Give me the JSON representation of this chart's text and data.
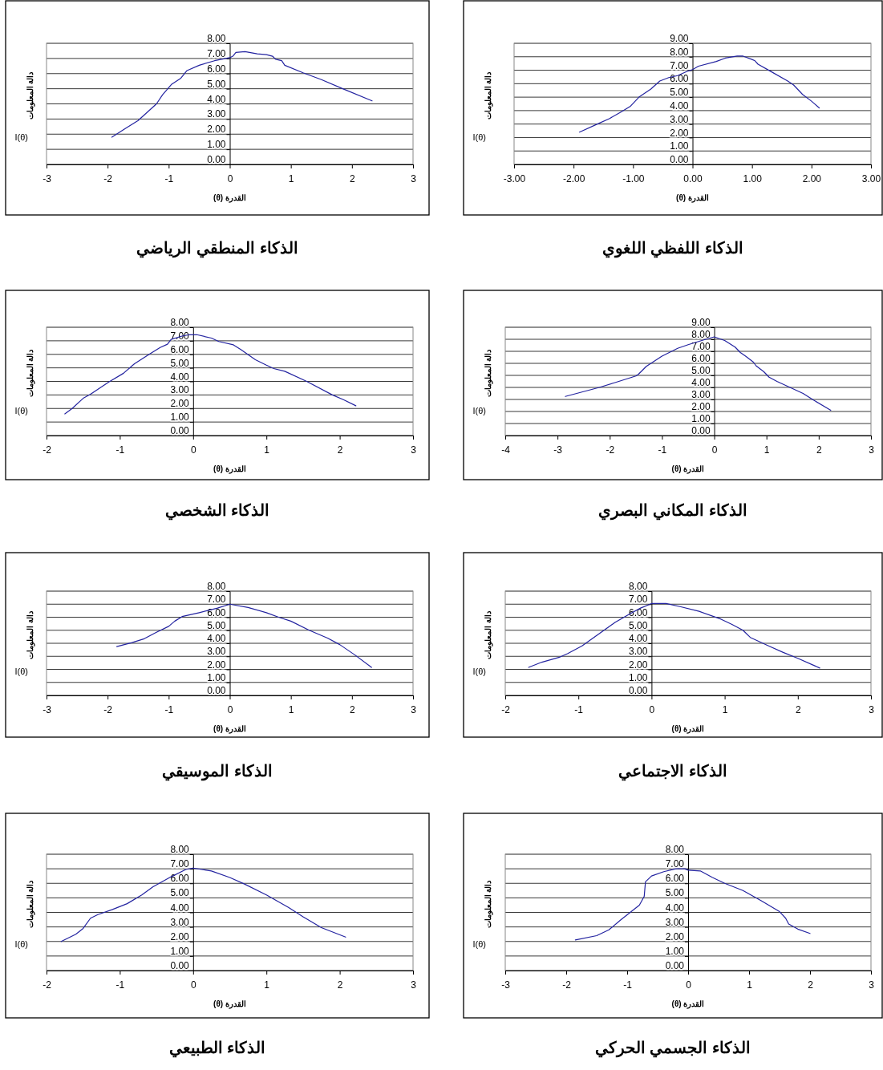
{
  "chart_data": [
    {
      "type": "line",
      "title": "الذكاء اللفظي اللغوي",
      "xlabel": "القدرة (θ)",
      "ylabel": "دالة المعلومات",
      "annotations": [
        "I(θ)"
      ],
      "grid": "y",
      "line_style": "solid",
      "xlim": [
        -3,
        3
      ],
      "xticks": [
        {
          "value": -3,
          "label": "-3.00"
        },
        {
          "value": -2,
          "label": "-2.00"
        },
        {
          "value": -1,
          "label": "-1.00"
        },
        {
          "value": 0,
          "label": "0.00"
        },
        {
          "value": 1,
          "label": "1.00"
        },
        {
          "value": 2,
          "label": "2.00"
        },
        {
          "value": 3,
          "label": "3.00"
        }
      ],
      "ylim": [
        0,
        9
      ],
      "yticks": [
        {
          "value": 0,
          "label": "0.00"
        },
        {
          "value": 1,
          "label": "1.00"
        },
        {
          "value": 2,
          "label": "2.00"
        },
        {
          "value": 3,
          "label": "3.00"
        },
        {
          "value": 4,
          "label": "4.00"
        },
        {
          "value": 5,
          "label": "5.00"
        },
        {
          "value": 6,
          "label": "6.00"
        },
        {
          "value": 7,
          "label": "7.00"
        },
        {
          "value": 8,
          "label": "8.00"
        },
        {
          "value": 9,
          "label": "9.00"
        }
      ],
      "series": [
        {
          "color": "#2323a0",
          "x": [
            -1.9,
            -1.6,
            -1.4,
            -1.2,
            -1.05,
            -0.9,
            -0.7,
            -0.55,
            -0.4,
            -0.25,
            -0.1,
            0,
            0.1,
            0.4,
            0.55,
            0.75,
            0.85,
            1.0,
            1.05,
            1.1,
            1.3,
            1.6,
            1.7,
            1.85,
            2.0,
            2.13
          ],
          "values": [
            2.4,
            3.0,
            3.4,
            3.9,
            4.3,
            5.0,
            5.6,
            6.2,
            6.45,
            6.6,
            6.9,
            7.05,
            7.3,
            7.65,
            7.9,
            8.05,
            8.05,
            7.8,
            7.7,
            7.45,
            6.95,
            6.2,
            5.9,
            5.2,
            4.7,
            4.2
          ]
        }
      ]
    },
    {
      "type": "line",
      "title": "الذكاء المنطقي الرياضي",
      "xlabel": "القدرة (θ)",
      "ylabel": "دالة المعلومات",
      "annotations": [
        "I(θ)"
      ],
      "grid": "y",
      "line_style": "solid",
      "xlim": [
        -3,
        3
      ],
      "xticks": [
        -3,
        -2,
        -1,
        0,
        1,
        2,
        3
      ],
      "ylim": [
        0,
        8
      ],
      "yticks": [
        {
          "value": 0,
          "label": "0.00"
        },
        {
          "value": 1,
          "label": "1.00"
        },
        {
          "value": 2,
          "label": "2.00"
        },
        {
          "value": 3,
          "label": "3.00"
        },
        {
          "value": 4,
          "label": "4.00"
        },
        {
          "value": 5,
          "label": "5.00"
        },
        {
          "value": 6,
          "label": "6.00"
        },
        {
          "value": 7,
          "label": "7.00"
        },
        {
          "value": 8,
          "label": "8.00"
        }
      ],
      "series": [
        {
          "color": "#2323a0",
          "x": [
            -1.93,
            -1.7,
            -1.5,
            -1.2,
            -1.1,
            -0.95,
            -0.8,
            -0.7,
            -0.5,
            -0.25,
            0,
            0.05,
            0.1,
            0.25,
            0.45,
            0.6,
            0.7,
            0.75,
            0.85,
            0.9,
            1.2,
            1.5,
            1.85,
            2.33
          ],
          "values": [
            1.8,
            2.4,
            2.9,
            4.0,
            4.6,
            5.3,
            5.7,
            6.2,
            6.55,
            6.85,
            7.05,
            7.15,
            7.4,
            7.45,
            7.3,
            7.25,
            7.15,
            6.95,
            6.85,
            6.55,
            6.05,
            5.6,
            5.0,
            4.2
          ]
        }
      ]
    },
    {
      "type": "line",
      "title": "الذكاء المكاني البصري",
      "xlabel": "القدرة (θ)",
      "ylabel": "دالة المعلومات",
      "annotations": [
        "I(θ)"
      ],
      "grid": "y",
      "line_style": "solid",
      "xlim": [
        -4,
        3
      ],
      "xticks": [
        -4,
        -3,
        -2,
        -1,
        0,
        1,
        2,
        3
      ],
      "ylim": [
        0,
        9
      ],
      "yticks": [
        {
          "value": 0,
          "label": "0.00"
        },
        {
          "value": 1,
          "label": "1.00"
        },
        {
          "value": 2,
          "label": "2.00"
        },
        {
          "value": 3,
          "label": "3.00"
        },
        {
          "value": 4,
          "label": "4.00"
        },
        {
          "value": 5,
          "label": "5.00"
        },
        {
          "value": 6,
          "label": "6.00"
        },
        {
          "value": 7,
          "label": "7.00"
        },
        {
          "value": 8,
          "label": "8.00"
        },
        {
          "value": 9,
          "label": "9.00"
        }
      ],
      "series": [
        {
          "color": "#2323a0",
          "x": [
            -2.85,
            -2.2,
            -1.9,
            -1.5,
            -1.45,
            -1.38,
            -1.3,
            -1.0,
            -0.7,
            -0.5,
            -0.2,
            0,
            0.2,
            0.4,
            0.5,
            0.6,
            0.75,
            0.8,
            0.95,
            1.05,
            1.2,
            1.45,
            1.7,
            1.9,
            2.23
          ],
          "values": [
            3.25,
            4.0,
            4.4,
            4.95,
            5.1,
            5.4,
            5.75,
            6.6,
            7.25,
            7.55,
            7.95,
            8.2,
            7.9,
            7.35,
            6.9,
            6.6,
            6.1,
            5.8,
            5.3,
            4.85,
            4.5,
            4.0,
            3.5,
            2.95,
            2.1
          ]
        }
      ]
    },
    {
      "type": "line",
      "title": "الذكاء الشخصي",
      "xlabel": "القدرة (θ)",
      "ylabel": "دالة المعلومات",
      "annotations": [
        "I(θ)"
      ],
      "grid": "y",
      "line_style": "solid",
      "xlim": [
        -2,
        3
      ],
      "xticks": [
        -2,
        -1,
        0,
        1,
        2,
        3
      ],
      "ylim": [
        0,
        8
      ],
      "yticks": [
        {
          "value": 0,
          "label": "0.00"
        },
        {
          "value": 1,
          "label": "1.00"
        },
        {
          "value": 2,
          "label": "2.00"
        },
        {
          "value": 3,
          "label": "3.00"
        },
        {
          "value": 4,
          "label": "4.00"
        },
        {
          "value": 5,
          "label": "5.00"
        },
        {
          "value": 6,
          "label": "6.00"
        },
        {
          "value": 7,
          "label": "7.00"
        },
        {
          "value": 8,
          "label": "8.00"
        }
      ],
      "series": [
        {
          "color": "#2323a0",
          "x": [
            -1.75,
            -1.65,
            -1.5,
            -1.4,
            -1.15,
            -0.95,
            -0.8,
            -0.6,
            -0.45,
            -0.35,
            -0.3,
            -0.15,
            -0.05,
            0.05,
            0.25,
            0.35,
            0.55,
            0.65,
            0.85,
            1.0,
            1.1,
            1.25,
            1.55,
            1.9,
            2.05,
            2.22
          ],
          "values": [
            1.6,
            2.0,
            2.75,
            3.05,
            3.95,
            4.6,
            5.3,
            6.0,
            6.5,
            6.75,
            7.1,
            7.35,
            7.45,
            7.45,
            7.2,
            6.95,
            6.7,
            6.35,
            5.6,
            5.2,
            4.95,
            4.75,
            4.0,
            3.0,
            2.65,
            2.2
          ]
        }
      ]
    },
    {
      "type": "line",
      "title": "الذكاء الاجتماعي",
      "xlabel": "القدرة (θ)",
      "ylabel": "دالة المعلومات",
      "annotations": [
        "I(θ)"
      ],
      "grid": "y",
      "line_style": "solid",
      "xlim": [
        -2,
        3
      ],
      "xticks": [
        -2,
        -1,
        0,
        1,
        2,
        3
      ],
      "ylim": [
        0,
        8
      ],
      "yticks": [
        {
          "value": 0,
          "label": "0.00"
        },
        {
          "value": 1,
          "label": "1.00"
        },
        {
          "value": 2,
          "label": "2.00"
        },
        {
          "value": 3,
          "label": "3.00"
        },
        {
          "value": 4,
          "label": "4.00"
        },
        {
          "value": 5,
          "label": "5.00"
        },
        {
          "value": 6,
          "label": "6.00"
        },
        {
          "value": 7,
          "label": "7.00"
        },
        {
          "value": 8,
          "label": "8.00"
        }
      ],
      "series": [
        {
          "color": "#2323a0",
          "x": [
            -1.68,
            -1.5,
            -1.25,
            -1.15,
            -0.95,
            -0.75,
            -0.5,
            -0.3,
            -0.15,
            0,
            0.2,
            0.4,
            0.65,
            0.95,
            1.1,
            1.25,
            1.35,
            1.6,
            1.8,
            2.0,
            2.3
          ],
          "values": [
            2.15,
            2.55,
            2.95,
            3.2,
            3.8,
            4.6,
            5.6,
            6.25,
            6.7,
            7.05,
            7.05,
            6.8,
            6.45,
            5.85,
            5.45,
            5.0,
            4.45,
            3.8,
            3.3,
            2.85,
            2.1
          ]
        }
      ]
    },
    {
      "type": "line",
      "title": "الذكاء الموسيقي",
      "xlabel": "القدرة (θ)",
      "ylabel": "دالة المعلومات",
      "annotations": [
        "I(θ)"
      ],
      "grid": "y",
      "line_style": "solid",
      "xlim": [
        -3,
        3
      ],
      "xticks": [
        -3,
        -2,
        -1,
        0,
        1,
        2,
        3
      ],
      "ylim": [
        0,
        8
      ],
      "yticks": [
        {
          "value": 0,
          "label": "0.00"
        },
        {
          "value": 1,
          "label": "1.00"
        },
        {
          "value": 2,
          "label": "2.00"
        },
        {
          "value": 3,
          "label": "3.00"
        },
        {
          "value": 4,
          "label": "4.00"
        },
        {
          "value": 5,
          "label": "5.00"
        },
        {
          "value": 6,
          "label": "6.00"
        },
        {
          "value": 7,
          "label": "7.00"
        },
        {
          "value": 8,
          "label": "8.00"
        }
      ],
      "series": [
        {
          "color": "#2323a0",
          "x": [
            -1.85,
            -1.6,
            -1.4,
            -1.2,
            -1.0,
            -0.9,
            -0.78,
            -0.5,
            -0.2,
            0,
            0.3,
            0.6,
            0.8,
            1.0,
            1.3,
            1.6,
            1.8,
            2.05,
            2.32
          ],
          "values": [
            3.75,
            4.05,
            4.35,
            4.85,
            5.3,
            5.7,
            6.05,
            6.35,
            6.7,
            7.0,
            6.75,
            6.35,
            6.0,
            5.7,
            5.0,
            4.4,
            3.9,
            3.1,
            2.15
          ]
        }
      ]
    },
    {
      "type": "line",
      "title": "الذكاء الجسمي الحركي",
      "xlabel": "القدرة (θ)",
      "ylabel": "دالة المعلومات",
      "annotations": [
        "I(θ)"
      ],
      "grid": "y",
      "line_style": "solid",
      "xlim": [
        -3,
        3
      ],
      "xticks": [
        -3,
        -2,
        -1,
        0,
        1,
        2,
        3
      ],
      "ylim": [
        0,
        8
      ],
      "yticks": [
        {
          "value": 0,
          "label": "0.00"
        },
        {
          "value": 1,
          "label": "1.00"
        },
        {
          "value": 2,
          "label": "2.00"
        },
        {
          "value": 3,
          "label": "3.00"
        },
        {
          "value": 4,
          "label": "4.00"
        },
        {
          "value": 5,
          "label": "5.00"
        },
        {
          "value": 6,
          "label": "6.00"
        },
        {
          "value": 7,
          "label": "7.00"
        },
        {
          "value": 8,
          "label": "8.00"
        }
      ],
      "series": [
        {
          "color": "#2323a0",
          "x": [
            -1.85,
            -1.5,
            -1.3,
            -1.1,
            -0.95,
            -0.8,
            -0.72,
            -0.7,
            -0.6,
            -0.4,
            -0.2,
            -0.05,
            0,
            0.2,
            0.4,
            0.6,
            0.9,
            1.2,
            1.5,
            1.6,
            1.65,
            1.8,
            2.0
          ],
          "values": [
            2.1,
            2.4,
            2.8,
            3.5,
            4.0,
            4.5,
            5.1,
            6.1,
            6.5,
            6.8,
            7.0,
            7.0,
            6.9,
            6.85,
            6.4,
            6.0,
            5.5,
            4.8,
            4.05,
            3.6,
            3.2,
            2.85,
            2.55
          ]
        }
      ]
    },
    {
      "type": "line",
      "title": "الذكاء الطبيعي",
      "xlabel": "القدرة (θ)",
      "ylabel": "دالة المعلومات",
      "annotations": [
        "I(θ)"
      ],
      "grid": "y",
      "line_style": "solid",
      "xlim": [
        -2,
        3
      ],
      "xticks": [
        -2,
        -1,
        0,
        1,
        2,
        3
      ],
      "ylim": [
        0,
        8
      ],
      "yticks": [
        {
          "value": 0,
          "label": "0.00"
        },
        {
          "value": 1,
          "label": "1.00"
        },
        {
          "value": 2,
          "label": "2.00"
        },
        {
          "value": 3,
          "label": "3.00"
        },
        {
          "value": 4,
          "label": "4.00"
        },
        {
          "value": 5,
          "label": "5.00"
        },
        {
          "value": 6,
          "label": "6.00"
        },
        {
          "value": 7,
          "label": "7.00"
        },
        {
          "value": 8,
          "label": "8.00"
        }
      ],
      "series": [
        {
          "color": "#2323a0",
          "x": [
            -1.8,
            -1.6,
            -1.5,
            -1.4,
            -1.3,
            -1.1,
            -0.9,
            -0.7,
            -0.55,
            -0.3,
            -0.1,
            0,
            0.25,
            0.5,
            0.7,
            1.0,
            1.3,
            1.5,
            1.75,
            2.08
          ],
          "values": [
            2.0,
            2.5,
            2.9,
            3.6,
            3.85,
            4.2,
            4.6,
            5.2,
            5.75,
            6.45,
            6.95,
            7.05,
            6.85,
            6.4,
            5.95,
            5.2,
            4.35,
            3.7,
            2.95,
            2.3
          ]
        }
      ]
    }
  ]
}
